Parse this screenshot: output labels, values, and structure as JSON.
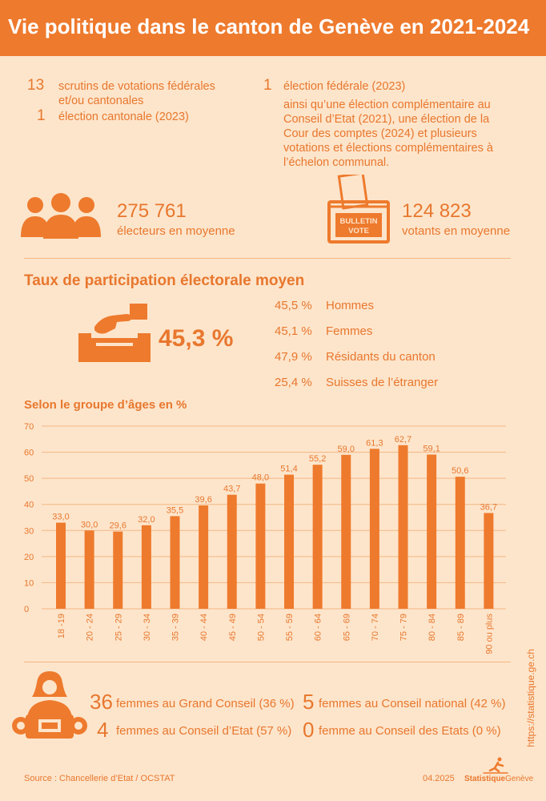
{
  "title": "Vie politique dans le canton de Genève en 2021-2024",
  "counts": {
    "votations_n": "13",
    "votations_label": "scrutins de votations fédérales et/ou cantonales",
    "cantonal_n": "1",
    "cantonal_label": "élection cantonale (2023)",
    "federal_n": "1",
    "federal_label": "élection fédérale (2023)",
    "federal_note": "ainsi qu’une élection complémentaire au Conseil d’Etat (2021), une élection de la Cour des comptes (2024) et plusieurs votations et élections complémentaires à l’échelon communal."
  },
  "electors": {
    "value": "275 761",
    "label": "électeurs en moyenne"
  },
  "voters": {
    "value": "124 823",
    "label": "votants en moyenne",
    "ballot_line1": "BULLETIN",
    "ballot_line2": "VOTE"
  },
  "participation": {
    "title": "Taux de participation électorale moyen",
    "overall": "45,3 %",
    "breakdown": [
      {
        "value": "45,5 %",
        "label": "Hommes"
      },
      {
        "value": "45,1 %",
        "label": "Femmes"
      },
      {
        "value": "47,9 %",
        "label": "Résidants du canton"
      },
      {
        "value": "25,4 %",
        "label": "Suisses de l’étranger"
      }
    ]
  },
  "chart_data": {
    "type": "bar",
    "title": "Selon le groupe d’âges en %",
    "categories": [
      "18 -19",
      "20 - 24",
      "25 - 29",
      "30 - 34",
      "35 - 39",
      "40 - 44",
      "45 - 49",
      "50 - 54",
      "55 - 59",
      "60 - 64",
      "65 - 69",
      "70 - 74",
      "75 - 79",
      "80 - 84",
      "85 - 89",
      "90 ou plus"
    ],
    "values": [
      33.0,
      30.0,
      29.6,
      32.0,
      35.5,
      39.6,
      43.7,
      48.0,
      51.4,
      55.2,
      59.0,
      61.3,
      62.7,
      59.1,
      50.6,
      36.7
    ],
    "value_labels": [
      "33,0",
      "30,0",
      "29,6",
      "32,0",
      "35,5",
      "39,6",
      "43,7",
      "48,0",
      "51,4",
      "55,2",
      "59,0",
      "61,3",
      "62,7",
      "59,1",
      "50,6",
      "36,7"
    ],
    "yticks": [
      "0",
      "10",
      "20",
      "30",
      "40",
      "50",
      "60",
      "70"
    ],
    "ylim": [
      0,
      70
    ],
    "grid": true,
    "bar_color": "#ee7a2d"
  },
  "women": [
    {
      "n": "36",
      "label": "femmes au Grand Conseil (36 %)"
    },
    {
      "n": "5",
      "label": "femmes au Conseil national (42 %)"
    },
    {
      "n": "4",
      "label": "femmes au Conseil d’Etat (57 %)"
    },
    {
      "n": "0",
      "label": "femme au Conseil des Etats (0 %)"
    }
  ],
  "footer": {
    "source": "Source : Chancellerie d’Etat / OCSTAT",
    "date": "04.2025",
    "brand_bold": "Statistique",
    "brand_light": "Genève",
    "url": "https://statistique.ge.ch"
  },
  "colors": {
    "accent": "#ee7a2d",
    "background": "#fde5cb",
    "grid": "#f3b784"
  }
}
